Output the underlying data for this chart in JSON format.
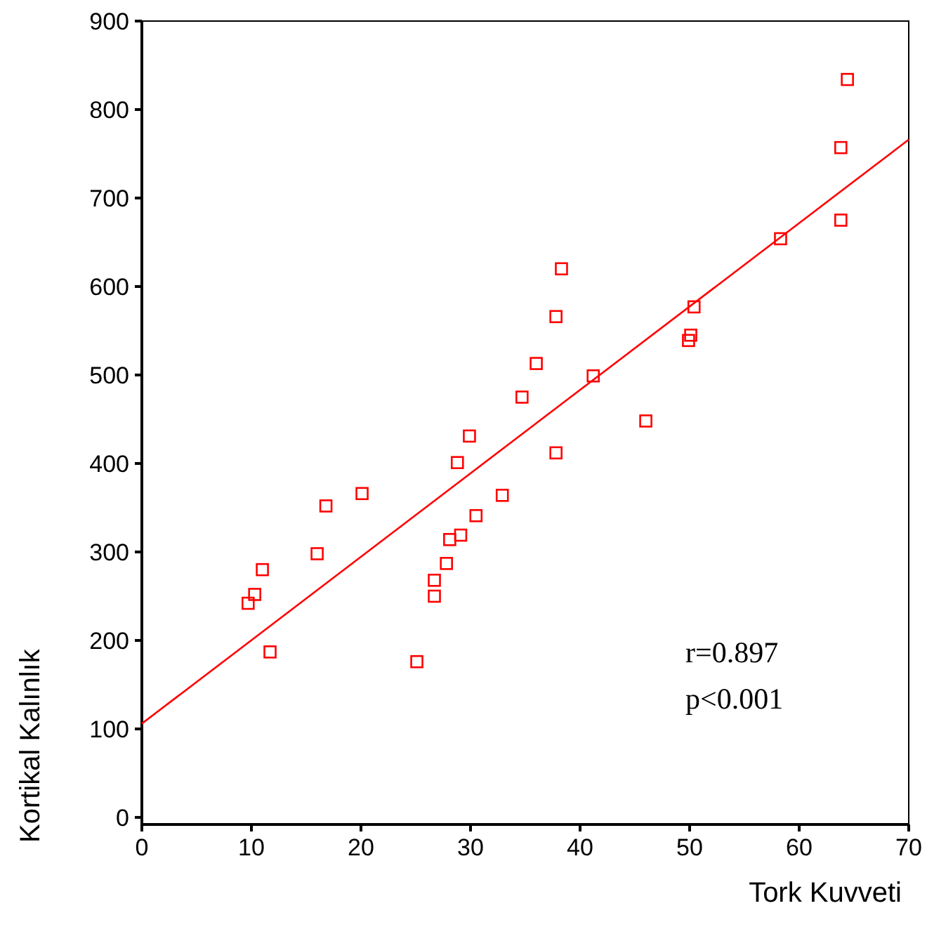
{
  "chart_data": {
    "type": "scatter",
    "xlabel": "Tork Kuvveti",
    "ylabel": "Kortikal Kalınlık",
    "xlim": [
      0,
      70
    ],
    "ylim": [
      -8,
      900
    ],
    "xticks": [
      0,
      10,
      20,
      30,
      40,
      50,
      60,
      70
    ],
    "yticks": [
      0,
      100,
      200,
      300,
      400,
      500,
      600,
      700,
      800,
      900
    ],
    "grid": false,
    "marker": "square",
    "annotations": [
      "r=0.897",
      "p<0.001"
    ],
    "series": [
      {
        "color": "#ff0000",
        "x": [
          9.7,
          10.3,
          11.0,
          11.7,
          16.0,
          16.8,
          20.1,
          25.1,
          26.7,
          26.7,
          27.8,
          28.1,
          29.1,
          28.8,
          29.9,
          30.5,
          32.9,
          34.7,
          36.0,
          37.8,
          37.8,
          38.3,
          41.2,
          46.0,
          49.9,
          50.1,
          50.4,
          58.3,
          63.8,
          63.8,
          64.4
        ],
        "values": [
          242,
          252,
          280,
          187,
          298,
          352,
          366,
          176,
          268,
          250,
          287,
          314,
          319,
          401,
          431,
          341,
          364,
          475,
          513,
          566,
          412,
          620,
          499,
          448,
          539,
          545,
          577,
          654,
          757,
          675,
          834
        ]
      },
      {
        "type": "line",
        "color": "#ff0000",
        "x": [
          0,
          70
        ],
        "values": [
          106,
          766
        ],
        "marker": "none"
      }
    ]
  }
}
